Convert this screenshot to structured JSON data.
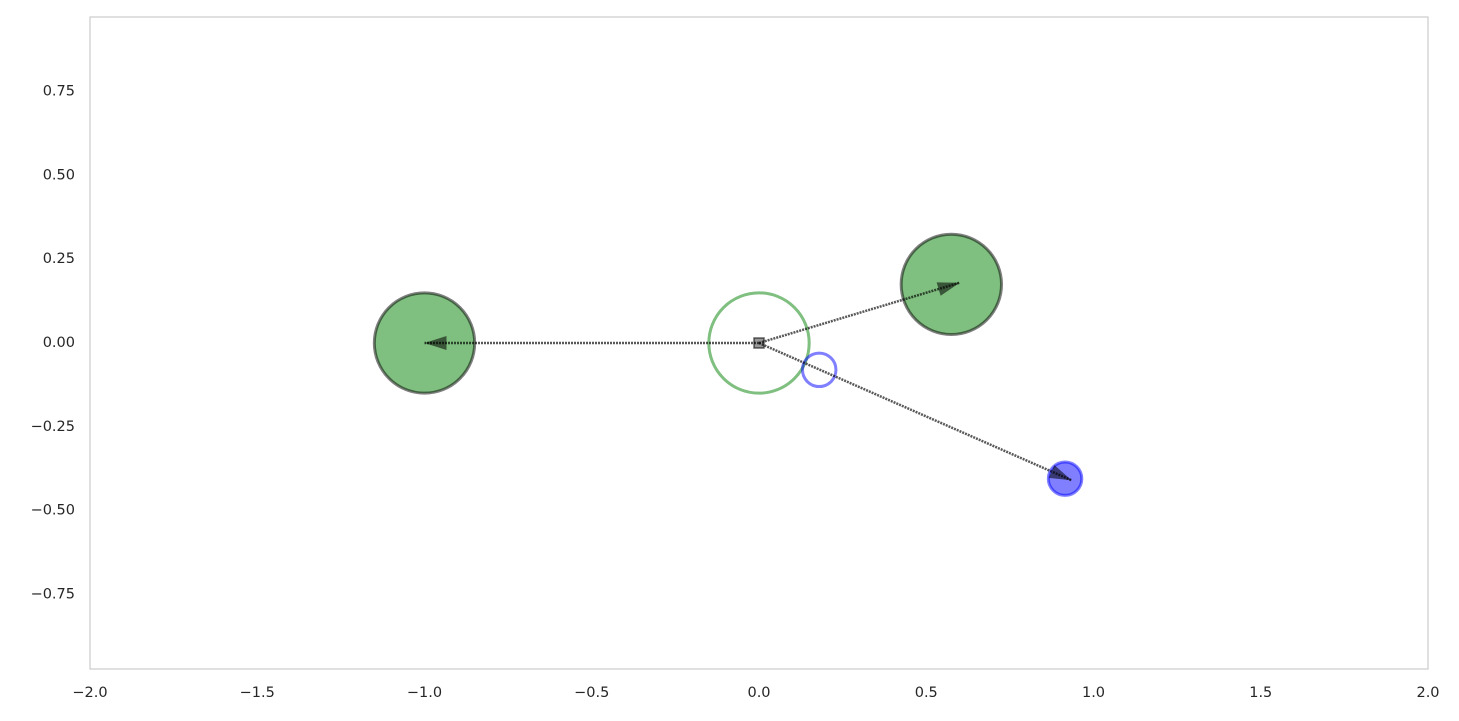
{
  "chart_data": {
    "type": "scatter",
    "xlim": [
      -2,
      2
    ],
    "ylim": [
      -0.973,
      0.973
    ],
    "xticks": [
      {
        "value": -2,
        "label": "−2.0"
      },
      {
        "value": -1.5,
        "label": "−1.5"
      },
      {
        "value": -1,
        "label": "−1.0"
      },
      {
        "value": -0.5,
        "label": "−0.5"
      },
      {
        "value": 0,
        "label": "0.0"
      },
      {
        "value": 0.5,
        "label": "0.5"
      },
      {
        "value": 1,
        "label": "1.0"
      },
      {
        "value": 1.5,
        "label": "1.5"
      },
      {
        "value": 2,
        "label": "2.0"
      }
    ],
    "yticks": [
      {
        "value": -0.75,
        "label": "−0.75"
      },
      {
        "value": -0.5,
        "label": "−0.50"
      },
      {
        "value": -0.25,
        "label": "−0.25"
      },
      {
        "value": 0,
        "label": "0.00"
      },
      0.25,
      {
        "value": 0.5,
        "label": "0.50"
      },
      0.75
    ],
    "grid": false,
    "circles": [
      {
        "x": -1,
        "y": 0,
        "radius": 0.15,
        "color": "#008000",
        "filled": true
      },
      {
        "x": 0.575,
        "y": 0.175,
        "radius": 0.15,
        "color": "#008000",
        "filled": true
      },
      {
        "x": 0,
        "y": 0,
        "radius": 0.15,
        "color": "#008000",
        "filled": false
      },
      {
        "x": 0.18,
        "y": -0.08,
        "radius": 0.05,
        "color": "#0000ff",
        "filled": false
      },
      {
        "x": 0.915,
        "y": -0.405,
        "radius": 0.05,
        "color": "#0000ff",
        "filled": true
      }
    ],
    "arrows": [
      {
        "x": 0,
        "y": 0,
        "dx": -1,
        "dy": 0
      },
      {
        "x": 0,
        "y": 0,
        "dx": 0.6,
        "dy": 0.18
      },
      {
        "x": 0,
        "y": 0,
        "dx": 0.935,
        "dy": -0.41
      }
    ],
    "marker": {
      "x": 0,
      "y": 0
    }
  }
}
